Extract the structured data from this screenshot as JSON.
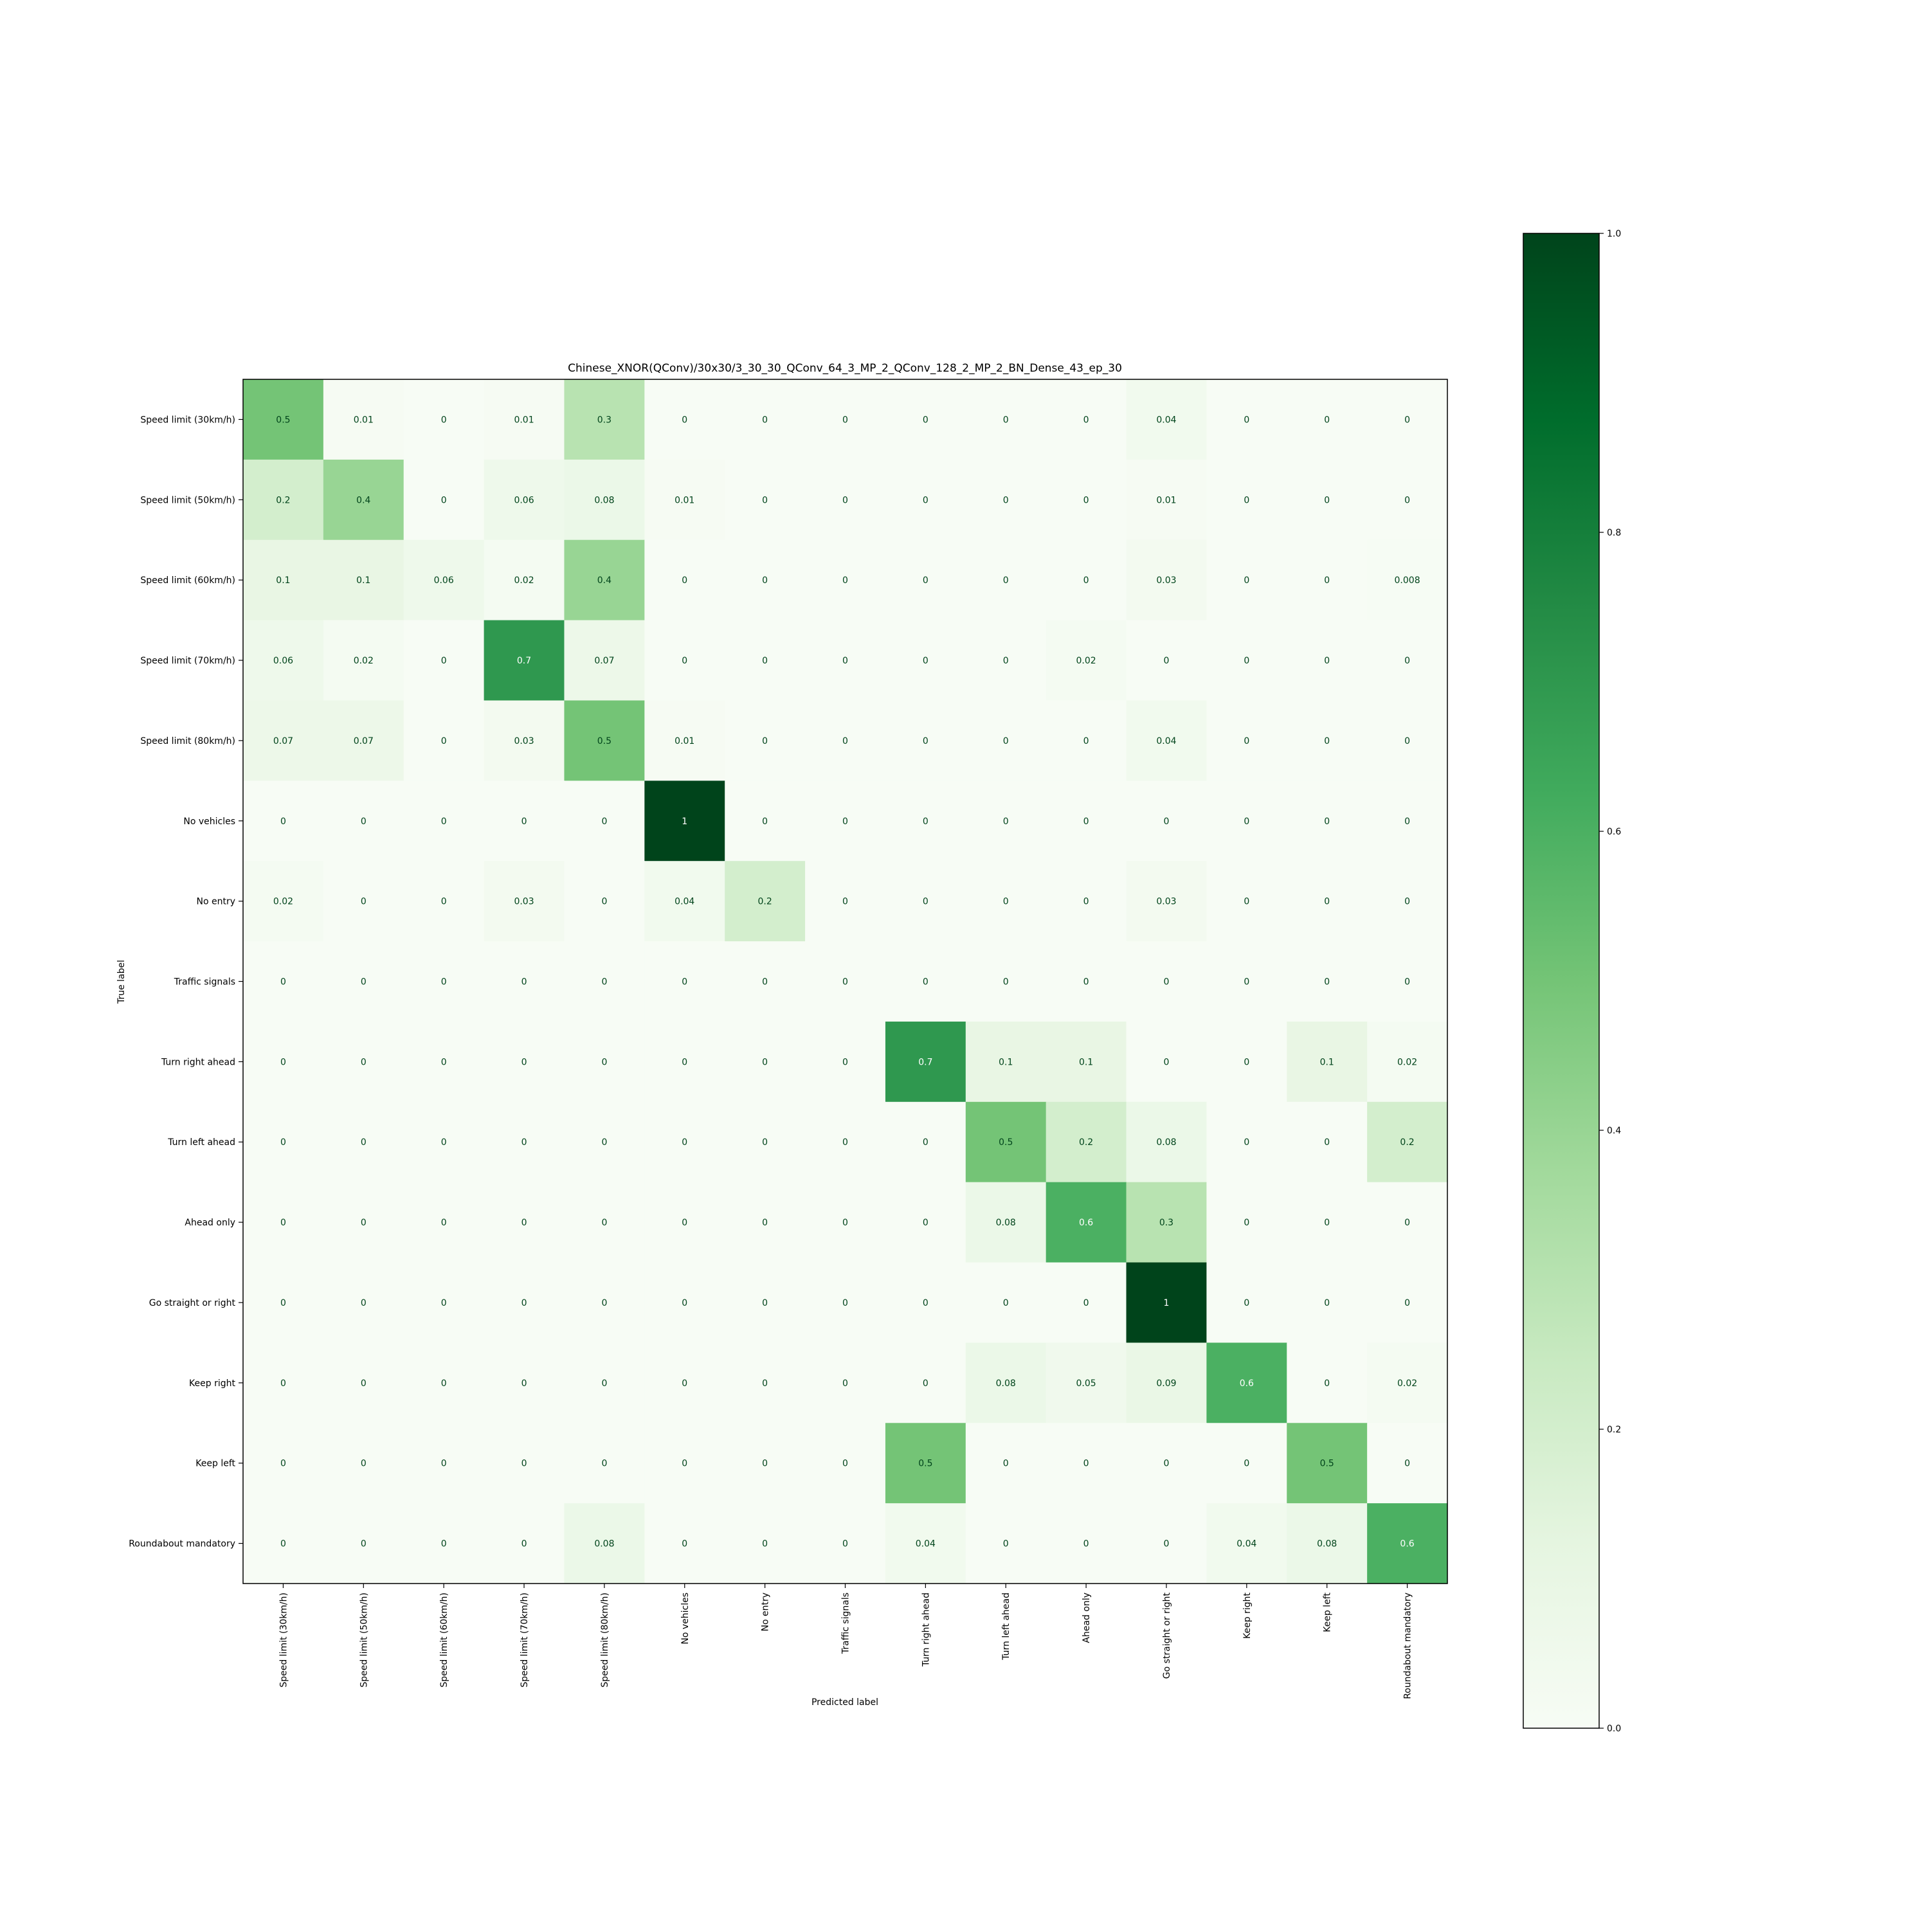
{
  "chart_data": {
    "type": "heatmap",
    "title": "Chinese_XNOR(QConv)/30x30/3_30_30_QConv_64_3_MP_2_QConv_128_2_MP_2_BN_Dense_43_ep_30",
    "xlabel": "Predicted label",
    "ylabel": "True label",
    "x_categories": [
      "Speed limit (30km/h)",
      "Speed limit (50km/h)",
      "Speed limit (60km/h)",
      "Speed limit (70km/h)",
      "Speed limit (80km/h)",
      "No vehicles",
      "No entry",
      "Traffic signals",
      "Turn right ahead",
      "Turn left ahead",
      "Ahead only",
      "Go straight or right",
      "Keep right",
      "Keep left",
      "Roundabout mandatory"
    ],
    "y_categories": [
      "Speed limit (30km/h)",
      "Speed limit (50km/h)",
      "Speed limit (60km/h)",
      "Speed limit (70km/h)",
      "Speed limit (80km/h)",
      "No vehicles",
      "No entry",
      "Traffic signals",
      "Turn right ahead",
      "Turn left ahead",
      "Ahead only",
      "Go straight or right",
      "Keep right",
      "Keep left",
      "Roundabout mandatory"
    ],
    "values": [
      [
        "0.5",
        "0.01",
        "0",
        "0.01",
        "0.3",
        "0",
        "0",
        "0",
        "0",
        "0",
        "0",
        "0.04",
        "0",
        "0",
        "0"
      ],
      [
        "0.2",
        "0.4",
        "0",
        "0.06",
        "0.08",
        "0.01",
        "0",
        "0",
        "0",
        "0",
        "0",
        "0.01",
        "0",
        "0",
        "0"
      ],
      [
        "0.1",
        "0.1",
        "0.06",
        "0.02",
        "0.4",
        "0",
        "0",
        "0",
        "0",
        "0",
        "0",
        "0.03",
        "0",
        "0",
        "0.008"
      ],
      [
        "0.06",
        "0.02",
        "0",
        "0.7",
        "0.07",
        "0",
        "0",
        "0",
        "0",
        "0",
        "0.02",
        "0",
        "0",
        "0",
        "0"
      ],
      [
        "0.07",
        "0.07",
        "0",
        "0.03",
        "0.5",
        "0.01",
        "0",
        "0",
        "0",
        "0",
        "0",
        "0.04",
        "0",
        "0",
        "0"
      ],
      [
        "0",
        "0",
        "0",
        "0",
        "0",
        "1",
        "0",
        "0",
        "0",
        "0",
        "0",
        "0",
        "0",
        "0",
        "0"
      ],
      [
        "0.02",
        "0",
        "0",
        "0.03",
        "0",
        "0.04",
        "0.2",
        "0",
        "0",
        "0",
        "0",
        "0.03",
        "0",
        "0",
        "0"
      ],
      [
        "0",
        "0",
        "0",
        "0",
        "0",
        "0",
        "0",
        "0",
        "0",
        "0",
        "0",
        "0",
        "0",
        "0",
        "0"
      ],
      [
        "0",
        "0",
        "0",
        "0",
        "0",
        "0",
        "0",
        "0",
        "0.7",
        "0.1",
        "0.1",
        "0",
        "0",
        "0.1",
        "0.02"
      ],
      [
        "0",
        "0",
        "0",
        "0",
        "0",
        "0",
        "0",
        "0",
        "0",
        "0.5",
        "0.2",
        "0.08",
        "0",
        "0",
        "0.2"
      ],
      [
        "0",
        "0",
        "0",
        "0",
        "0",
        "0",
        "0",
        "0",
        "0",
        "0.08",
        "0.6",
        "0.3",
        "0",
        "0",
        "0"
      ],
      [
        "0",
        "0",
        "0",
        "0",
        "0",
        "0",
        "0",
        "0",
        "0",
        "0",
        "0",
        "1",
        "0",
        "0",
        "0"
      ],
      [
        "0",
        "0",
        "0",
        "0",
        "0",
        "0",
        "0",
        "0",
        "0",
        "0.08",
        "0.05",
        "0.09",
        "0.6",
        "0",
        "0.02"
      ],
      [
        "0",
        "0",
        "0",
        "0",
        "0",
        "0",
        "0",
        "0",
        "0.5",
        "0",
        "0",
        "0",
        "0",
        "0.5",
        "0"
      ],
      [
        "0",
        "0",
        "0",
        "0",
        "0.08",
        "0",
        "0",
        "0",
        "0.04",
        "0",
        "0",
        "0",
        "0.04",
        "0.08",
        "0.6"
      ]
    ],
    "colorscale": "Greens",
    "colors": {
      "low": "#f7fcf5",
      "high": "#00441b"
    },
    "value_range": [
      0,
      1
    ],
    "colorbar_ticks": [
      "0.0",
      "0.2",
      "0.4",
      "0.6",
      "0.8",
      "1.0"
    ],
    "colorbar_placement": "right",
    "grid": false
  }
}
